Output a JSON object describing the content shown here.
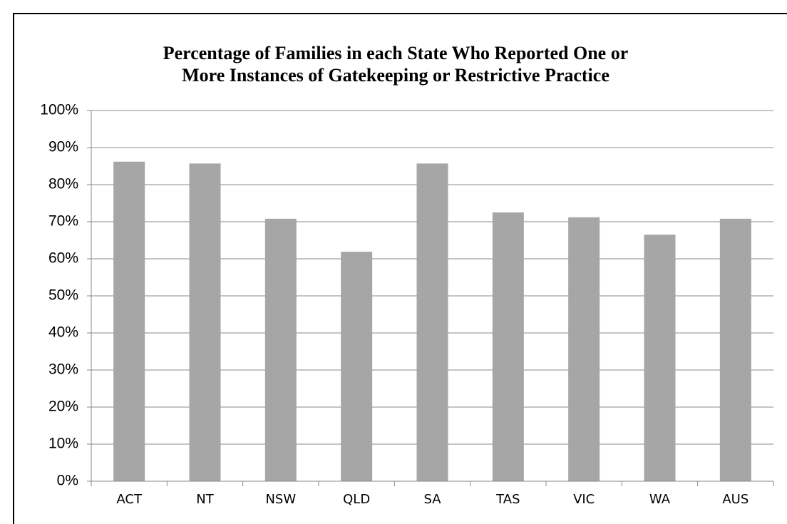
{
  "chart_data": {
    "type": "bar",
    "title": [
      "Percentage of Families in each State Who Reported One or",
      "More Instances of Gatekeeping or Restrictive Practice"
    ],
    "categories": [
      "ACT",
      "NT",
      "NSW",
      "QLD",
      "SA",
      "TAS",
      "VIC",
      "WA",
      "AUS"
    ],
    "values": [
      86.2,
      85.7,
      70.8,
      61.9,
      85.7,
      72.5,
      71.2,
      66.5,
      70.8
    ],
    "color": "#a6a6a6",
    "ylim": [
      0,
      100
    ],
    "yticks": [
      {
        "value": 0,
        "label": "0%"
      },
      {
        "value": 10,
        "label": "10%"
      },
      {
        "value": 20,
        "label": "20%"
      },
      {
        "value": 30,
        "label": "30%"
      },
      {
        "value": 40,
        "label": "40%"
      },
      {
        "value": 50,
        "label": "50%"
      },
      {
        "value": 60,
        "label": "60%"
      },
      {
        "value": 70,
        "label": "70%"
      },
      {
        "value": 80,
        "label": "80%"
      },
      {
        "value": 90,
        "label": "90%"
      },
      {
        "value": 100,
        "label": "100%"
      }
    ],
    "grid": true
  }
}
